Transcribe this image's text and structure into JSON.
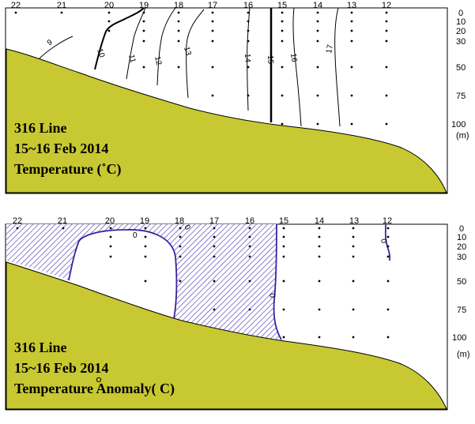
{
  "chart_data": [
    {
      "type": "contour",
      "title_lines": [
        "316 Line",
        "15~16 Feb 2014",
        "Temperature (˚C)"
      ],
      "stations": [
        "22",
        "21",
        "20",
        "19",
        "18",
        "17",
        "16",
        "15",
        "14",
        "13",
        "12"
      ],
      "depth_ticks": [
        "0",
        "10",
        "20",
        "30",
        "50",
        "75",
        "100",
        "(m)"
      ],
      "depths_m": [
        0,
        10,
        20,
        30,
        50,
        75,
        100
      ],
      "isotherms": [
        {
          "value": 9,
          "label": "9"
        },
        {
          "value": 10,
          "label": "10"
        },
        {
          "value": 11,
          "label": "11"
        },
        {
          "value": 12,
          "label": "12"
        },
        {
          "value": 13,
          "label": "13"
        },
        {
          "value": 14,
          "label": "14"
        },
        {
          "value": 15,
          "label": "15"
        },
        {
          "value": 16,
          "label": "16"
        },
        {
          "value": 17,
          "label": "17"
        }
      ],
      "bottom_color": "#c8c832"
    },
    {
      "type": "contour",
      "title_lines": [
        "316 Line",
        "15~16 Feb 2014",
        "Temperature Anomaly( C)"
      ],
      "stations": [
        "22",
        "21",
        "20",
        "19",
        "18",
        "17",
        "16",
        "15",
        "14",
        "13",
        "12"
      ],
      "depth_ticks": [
        "0",
        "10",
        "20",
        "30",
        "50",
        "75",
        "100",
        "(m)"
      ],
      "depths_m": [
        0,
        10,
        20,
        30,
        50,
        75,
        100
      ],
      "contours": [
        {
          "value": 0,
          "label": "0"
        },
        {
          "value": 0,
          "label": "0"
        },
        {
          "value": 0,
          "label": "0"
        },
        {
          "value": 0,
          "label": "0"
        }
      ],
      "negative_region": "hatched",
      "contour_color": "#4020a0",
      "bottom_color": "#c8c832"
    }
  ]
}
